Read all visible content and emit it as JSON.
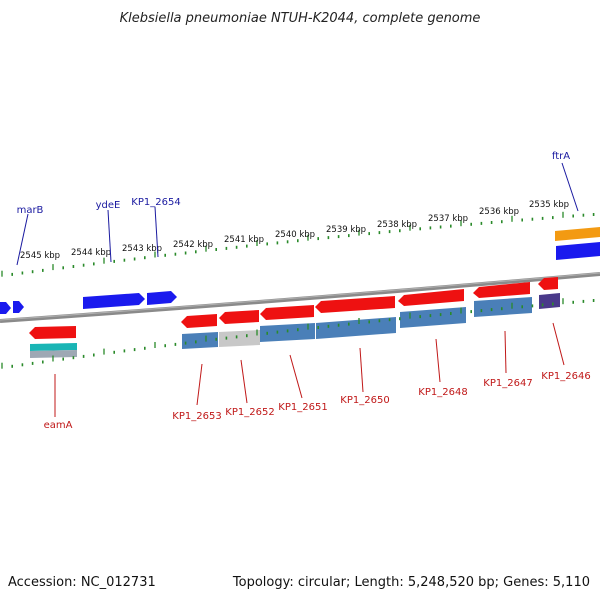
{
  "title": "Klebsiella pneumoniae NTUH-K2044, complete genome",
  "footer": {
    "accession": "Accession: NC_012731",
    "summary": "Topology: circular; Length: 5,248,520 bp; Genes: 5,110"
  },
  "colors": {
    "forward_gene": "#1a1aee",
    "reverse_gene": "#ee1111",
    "tick": "#2a8a2a",
    "backbone": "#8a8a8a",
    "forward_label": "#1a1aa0",
    "reverse_label": "#c01818",
    "cds_blue": "#4a7fb8",
    "cds_grey": "#c8c8c8",
    "teal": "#19b5b5",
    "orange": "#f39a12",
    "purple": "#4a3a8a"
  },
  "scale_labels": [
    "2545 kbp",
    "2544 kbp",
    "2543 kbp",
    "2542 kbp",
    "2541 kbp",
    "2540 kbp",
    "2539 kbp",
    "2538 kbp",
    "2537 kbp",
    "2536 kbp",
    "2535 kbp"
  ],
  "genes_forward": [
    {
      "name": "marB"
    },
    {
      "name": "ydeE"
    },
    {
      "name": "KP1_2654"
    },
    {
      "name": "ftrA"
    }
  ],
  "genes_reverse": [
    {
      "name": "eamA"
    },
    {
      "name": "KP1_2653"
    },
    {
      "name": "KP1_2652"
    },
    {
      "name": "KP1_2651"
    },
    {
      "name": "KP1_2650"
    },
    {
      "name": "KP1_2648"
    },
    {
      "name": "KP1_2647"
    },
    {
      "name": "KP1_2646"
    }
  ]
}
